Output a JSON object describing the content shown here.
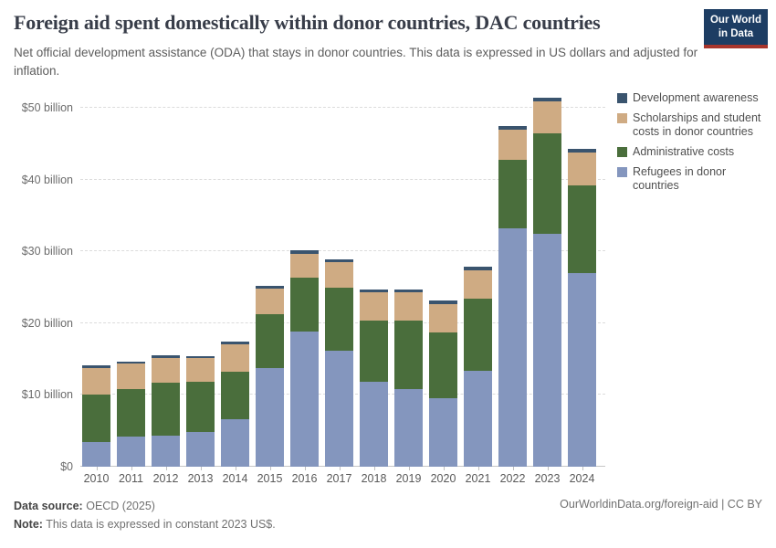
{
  "header": {
    "title": "Foreign aid spent domestically within donor countries, DAC countries",
    "subtitle": "Net official development assistance (ODA) that stays in donor countries. This data is expressed in US dollars and adjusted for inflation.",
    "logo": {
      "line1": "Our World",
      "line2": "in Data"
    }
  },
  "colors": {
    "development_awareness": "#3A546E",
    "scholarships": "#CFAB83",
    "administrative_costs": "#4A6E3C",
    "refugees": "#8496BE",
    "logo_bg": "#1D3D63",
    "logo_stripe": "#A8352C"
  },
  "chart_data": {
    "type": "bar",
    "stacked": true,
    "title": "Foreign aid spent domestically within donor countries, DAC countries",
    "unit": "US$ billion (constant 2023 US$)",
    "categories": [
      "2010",
      "2011",
      "2012",
      "2013",
      "2014",
      "2015",
      "2016",
      "2017",
      "2018",
      "2019",
      "2020",
      "2021",
      "2022",
      "2023",
      "2024"
    ],
    "series": [
      {
        "name": "Refugees in donor countries",
        "slug": "refugees-in-donor-countries",
        "color": "#8496BE",
        "values": [
          3.5,
          4.2,
          4.3,
          4.8,
          6.6,
          13.8,
          18.8,
          16.1,
          11.8,
          10.8,
          9.5,
          13.4,
          33.2,
          32.4,
          27.0
        ]
      },
      {
        "name": "Administrative costs",
        "slug": "administrative-costs",
        "color": "#4A6E3C",
        "values": [
          6.5,
          6.6,
          7.4,
          7.0,
          6.6,
          7.4,
          7.5,
          8.8,
          8.6,
          9.6,
          9.2,
          10.0,
          9.5,
          14.0,
          12.2
        ]
      },
      {
        "name": "Scholarships and student costs in donor countries",
        "slug": "scholarships-and-student-costs",
        "color": "#CFAB83",
        "values": [
          3.7,
          3.6,
          3.4,
          3.3,
          3.8,
          3.6,
          3.4,
          3.6,
          3.9,
          3.9,
          4.0,
          4.0,
          4.2,
          4.5,
          4.6
        ]
      },
      {
        "name": "Development awareness",
        "slug": "development-awareness",
        "color": "#3A546E",
        "values": [
          0.4,
          0.3,
          0.4,
          0.3,
          0.4,
          0.4,
          0.4,
          0.4,
          0.4,
          0.4,
          0.5,
          0.5,
          0.6,
          0.5,
          0.5
        ]
      }
    ],
    "totals": [
      14.1,
      14.7,
      15.5,
      15.4,
      17.4,
      25.2,
      30.1,
      28.9,
      24.7,
      24.7,
      23.2,
      27.9,
      47.5,
      51.4,
      44.3
    ],
    "yticks": [
      {
        "value": 0,
        "label": "$0"
      },
      {
        "value": 10,
        "label": "$10 billion"
      },
      {
        "value": 20,
        "label": "$20 billion"
      },
      {
        "value": 30,
        "label": "$30 billion"
      },
      {
        "value": 40,
        "label": "$40 billion"
      },
      {
        "value": 50,
        "label": "$50 billion"
      }
    ],
    "ylim": [
      0,
      52.8
    ],
    "grid": "horizontal-dashed",
    "legend_position": "right"
  },
  "legend": {
    "items": [
      {
        "label": "Development awareness",
        "color": "#3A546E"
      },
      {
        "label": "Scholarships and student costs in donor countries",
        "color": "#CFAB83"
      },
      {
        "label": "Administrative costs",
        "color": "#4A6E3C"
      },
      {
        "label": "Refugees in donor countries",
        "color": "#8496BE"
      }
    ]
  },
  "footer": {
    "source_label": "Data source:",
    "source_value": "OECD (2025)",
    "note_label": "Note:",
    "note_value": "This data is expressed in constant 2023 US$.",
    "link": "OurWorldinData.org/foreign-aid | CC BY"
  }
}
